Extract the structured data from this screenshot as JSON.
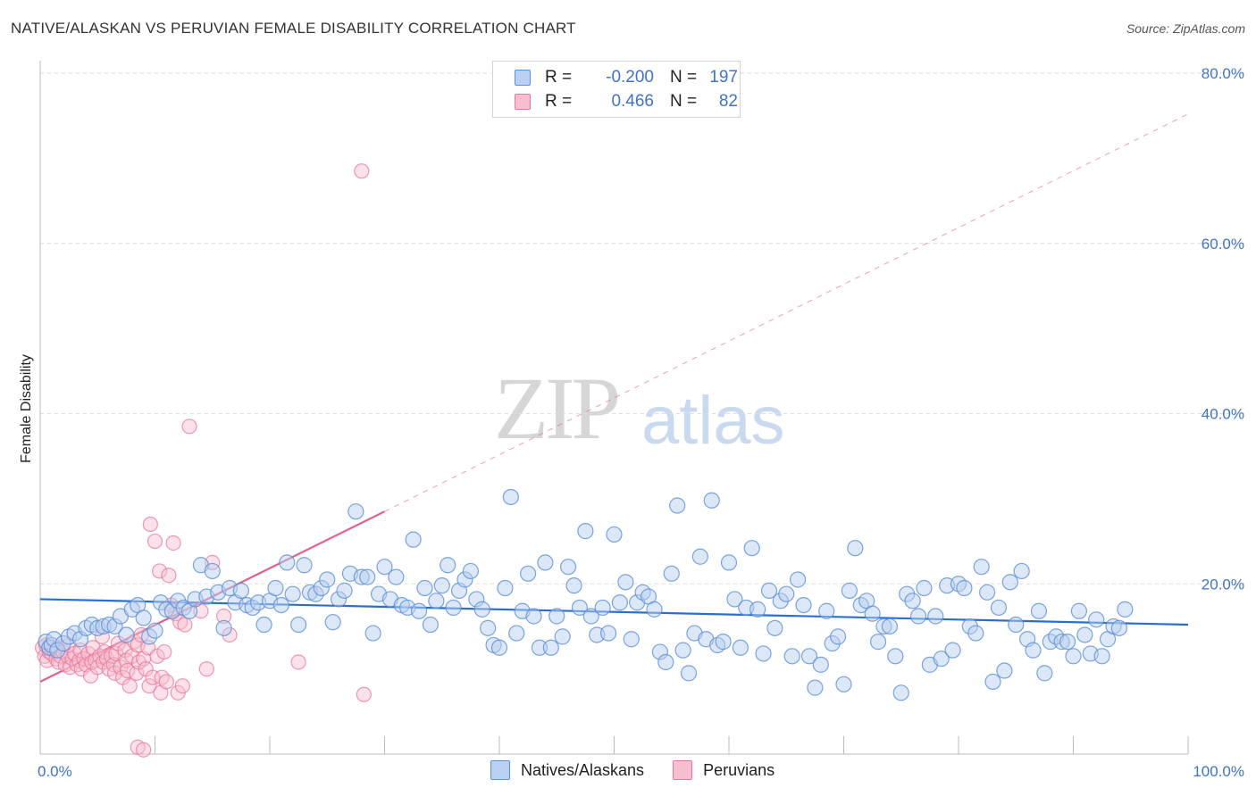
{
  "title": "NATIVE/ALASKAN VS PERUVIAN FEMALE DISABILITY CORRELATION CHART",
  "source": "Source: ZipAtlas.com",
  "watermark": {
    "zip": "ZIP",
    "atlas": "atlas"
  },
  "colors": {
    "blue": "#5b8fd6",
    "blue_fill": "#b9d0f0",
    "blue_line": "#2a6fd0",
    "pink": "#e8779a",
    "pink_fill": "#f6bfd0",
    "pink_line": "#e0608a",
    "axis_text": "#3f73c8",
    "grid": "#dddddd"
  },
  "legend": {
    "rows": [
      {
        "r_label": "R =",
        "r_value": "-0.200",
        "n_label": "N =",
        "n_value": "197"
      },
      {
        "r_label": "R =",
        "r_value": "0.466",
        "n_label": "N =",
        "n_value": "82"
      }
    ]
  },
  "bottom_legend": {
    "natives": "Natives/Alaskans",
    "peruvians": "Peruvians"
  },
  "chart_data": {
    "type": "scatter",
    "title": "NATIVE/ALASKAN VS PERUVIAN FEMALE DISABILITY CORRELATION CHART",
    "xlabel": "",
    "ylabel": "Female Disability",
    "xlim": [
      0,
      100
    ],
    "ylim": [
      0,
      80
    ],
    "x_tick_labels": [
      "0.0%",
      "100.0%"
    ],
    "y_ticks": [
      20,
      40,
      60,
      80
    ],
    "y_tick_labels": [
      "20.0%",
      "40.0%",
      "60.0%",
      "80.0%"
    ],
    "grid": true,
    "series": [
      {
        "name": "Natives/Alaskans",
        "R": -0.2,
        "N": 197,
        "trend": {
          "x": [
            0,
            100
          ],
          "y": [
            18.2,
            15.2
          ],
          "style": "solid"
        },
        "points": [
          [
            0.5,
            13.2
          ],
          [
            0.8,
            12.5
          ],
          [
            1.0,
            12.8
          ],
          [
            1.2,
            13.5
          ],
          [
            1.5,
            12.2
          ],
          [
            2.0,
            13.0
          ],
          [
            2.5,
            13.8
          ],
          [
            3.0,
            14.2
          ],
          [
            3.5,
            13.5
          ],
          [
            4.0,
            14.8
          ],
          [
            4.5,
            15.2
          ],
          [
            5.0,
            14.8
          ],
          [
            5.5,
            15.0
          ],
          [
            6.0,
            15.2
          ],
          [
            6.5,
            15.0
          ],
          [
            7.0,
            16.2
          ],
          [
            7.5,
            14.0
          ],
          [
            8.0,
            17.0
          ],
          [
            8.5,
            17.5
          ],
          [
            9.0,
            16.0
          ],
          [
            9.5,
            13.8
          ],
          [
            10.0,
            14.5
          ],
          [
            10.5,
            17.8
          ],
          [
            11.0,
            17.0
          ],
          [
            11.5,
            16.8
          ],
          [
            12.0,
            18.0
          ],
          [
            12.5,
            17.2
          ],
          [
            13.0,
            16.8
          ],
          [
            13.5,
            18.2
          ],
          [
            14.0,
            22.2
          ],
          [
            14.5,
            18.5
          ],
          [
            15.0,
            21.5
          ],
          [
            15.5,
            19.0
          ],
          [
            16.0,
            14.8
          ],
          [
            16.5,
            19.5
          ],
          [
            17.0,
            17.8
          ],
          [
            17.5,
            19.2
          ],
          [
            18.0,
            17.5
          ],
          [
            18.5,
            17.2
          ],
          [
            19.0,
            17.8
          ],
          [
            19.5,
            15.2
          ],
          [
            20.0,
            18.0
          ],
          [
            20.5,
            19.5
          ],
          [
            21.0,
            17.5
          ],
          [
            21.5,
            22.5
          ],
          [
            22.0,
            18.8
          ],
          [
            22.5,
            15.2
          ],
          [
            23.0,
            22.2
          ],
          [
            23.5,
            19.0
          ],
          [
            24.0,
            18.8
          ],
          [
            24.5,
            19.5
          ],
          [
            25.0,
            20.5
          ],
          [
            25.5,
            15.5
          ],
          [
            26.0,
            18.2
          ],
          [
            26.5,
            19.2
          ],
          [
            27.0,
            21.2
          ],
          [
            27.5,
            28.5
          ],
          [
            28.0,
            20.8
          ],
          [
            28.5,
            20.8
          ],
          [
            29.0,
            14.2
          ],
          [
            29.5,
            18.8
          ],
          [
            30.0,
            22.0
          ],
          [
            30.5,
            18.2
          ],
          [
            31.0,
            20.8
          ],
          [
            31.5,
            17.5
          ],
          [
            32.0,
            17.2
          ],
          [
            32.5,
            25.2
          ],
          [
            33.0,
            16.8
          ],
          [
            33.5,
            19.5
          ],
          [
            34.0,
            15.2
          ],
          [
            34.5,
            18.0
          ],
          [
            35.0,
            19.8
          ],
          [
            35.5,
            22.2
          ],
          [
            36.0,
            17.2
          ],
          [
            36.5,
            19.2
          ],
          [
            37.0,
            20.5
          ],
          [
            37.5,
            21.5
          ],
          [
            38.0,
            18.2
          ],
          [
            38.5,
            17.0
          ],
          [
            39.0,
            14.8
          ],
          [
            39.5,
            12.8
          ],
          [
            40.0,
            12.5
          ],
          [
            40.5,
            19.5
          ],
          [
            41.0,
            30.2
          ],
          [
            41.5,
            14.2
          ],
          [
            42.0,
            16.8
          ],
          [
            42.5,
            21.2
          ],
          [
            43.0,
            16.2
          ],
          [
            43.5,
            12.5
          ],
          [
            44.0,
            22.5
          ],
          [
            44.5,
            12.5
          ],
          [
            45.0,
            16.2
          ],
          [
            45.5,
            13.8
          ],
          [
            46.0,
            22.0
          ],
          [
            46.5,
            19.8
          ],
          [
            47.0,
            17.2
          ],
          [
            47.5,
            26.2
          ],
          [
            48.0,
            16.2
          ],
          [
            48.5,
            14.0
          ],
          [
            49.0,
            17.2
          ],
          [
            49.5,
            14.2
          ],
          [
            50.0,
            25.8
          ],
          [
            50.5,
            17.8
          ],
          [
            51.0,
            20.2
          ],
          [
            51.5,
            13.5
          ],
          [
            52.0,
            17.8
          ],
          [
            52.5,
            19.0
          ],
          [
            53.0,
            18.5
          ],
          [
            53.5,
            17.0
          ],
          [
            54.0,
            12.0
          ],
          [
            54.5,
            10.8
          ],
          [
            55.0,
            21.2
          ],
          [
            55.5,
            29.2
          ],
          [
            56.0,
            12.2
          ],
          [
            56.5,
            9.5
          ],
          [
            57.0,
            14.2
          ],
          [
            57.5,
            23.2
          ],
          [
            58.0,
            13.5
          ],
          [
            58.5,
            29.8
          ],
          [
            59.0,
            12.8
          ],
          [
            59.5,
            13.2
          ],
          [
            60.0,
            22.5
          ],
          [
            60.5,
            18.2
          ],
          [
            61.0,
            12.5
          ],
          [
            61.5,
            17.2
          ],
          [
            62.0,
            24.2
          ],
          [
            62.5,
            17.0
          ],
          [
            63.0,
            11.8
          ],
          [
            63.5,
            19.2
          ],
          [
            64.0,
            14.8
          ],
          [
            64.5,
            18.0
          ],
          [
            65.0,
            18.8
          ],
          [
            65.5,
            11.5
          ],
          [
            66.0,
            20.5
          ],
          [
            66.5,
            17.5
          ],
          [
            67.0,
            11.5
          ],
          [
            67.5,
            7.8
          ],
          [
            68.0,
            10.5
          ],
          [
            68.5,
            16.8
          ],
          [
            69.0,
            13.0
          ],
          [
            69.5,
            13.8
          ],
          [
            70.0,
            8.2
          ],
          [
            70.5,
            19.2
          ],
          [
            71.0,
            24.2
          ],
          [
            71.5,
            17.5
          ],
          [
            72.0,
            18.0
          ],
          [
            72.5,
            16.5
          ],
          [
            73.0,
            13.2
          ],
          [
            73.5,
            15.0
          ],
          [
            74.0,
            15.0
          ],
          [
            74.5,
            11.5
          ],
          [
            75.0,
            7.2
          ],
          [
            75.5,
            18.8
          ],
          [
            76.0,
            18.0
          ],
          [
            76.5,
            16.2
          ],
          [
            77.0,
            19.5
          ],
          [
            77.5,
            10.5
          ],
          [
            78.0,
            16.2
          ],
          [
            78.5,
            11.2
          ],
          [
            79.0,
            19.8
          ],
          [
            79.5,
            12.2
          ],
          [
            80.0,
            20.0
          ],
          [
            80.5,
            19.5
          ],
          [
            81.0,
            15.0
          ],
          [
            81.5,
            14.2
          ],
          [
            82.0,
            22.0
          ],
          [
            82.5,
            19.0
          ],
          [
            83.0,
            8.5
          ],
          [
            83.5,
            17.2
          ],
          [
            84.0,
            9.8
          ],
          [
            84.5,
            20.2
          ],
          [
            85.0,
            15.2
          ],
          [
            85.5,
            21.5
          ],
          [
            86.0,
            13.5
          ],
          [
            86.5,
            12.2
          ],
          [
            87.0,
            16.8
          ],
          [
            87.5,
            9.5
          ],
          [
            88.0,
            13.2
          ],
          [
            88.5,
            13.8
          ],
          [
            89.0,
            13.2
          ],
          [
            89.5,
            13.2
          ],
          [
            90.0,
            11.5
          ],
          [
            90.5,
            16.8
          ],
          [
            91.0,
            14.0
          ],
          [
            91.5,
            11.8
          ],
          [
            92.0,
            15.8
          ],
          [
            92.5,
            11.5
          ],
          [
            93.0,
            13.5
          ],
          [
            93.5,
            15.0
          ],
          [
            94.0,
            14.8
          ],
          [
            94.5,
            17.0
          ]
        ]
      },
      {
        "name": "Peruvians",
        "R": 0.466,
        "N": 82,
        "trend": {
          "x": [
            0,
            30
          ],
          "y": [
            8.5,
            28.5
          ],
          "style": "solid",
          "extension": {
            "x": [
              30,
              100
            ],
            "y": [
              28.5,
              75.2
            ],
            "style": "dashed"
          }
        },
        "points": [
          [
            0.2,
            12.5
          ],
          [
            0.4,
            11.5
          ],
          [
            0.5,
            12.8
          ],
          [
            0.6,
            11.0
          ],
          [
            0.8,
            12.0
          ],
          [
            1.0,
            11.8
          ],
          [
            1.2,
            12.2
          ],
          [
            1.4,
            11.2
          ],
          [
            1.5,
            12.5
          ],
          [
            1.6,
            10.8
          ],
          [
            1.8,
            11.5
          ],
          [
            2.0,
            12.0
          ],
          [
            2.2,
            10.5
          ],
          [
            2.4,
            11.5
          ],
          [
            2.5,
            12.8
          ],
          [
            2.6,
            10.2
          ],
          [
            2.8,
            11.2
          ],
          [
            3.0,
            11.8
          ],
          [
            3.2,
            10.5
          ],
          [
            3.4,
            11.0
          ],
          [
            3.5,
            12.2
          ],
          [
            3.6,
            10.0
          ],
          [
            3.8,
            11.2
          ],
          [
            4.0,
            10.5
          ],
          [
            4.2,
            11.8
          ],
          [
            4.4,
            9.2
          ],
          [
            4.5,
            10.8
          ],
          [
            4.6,
            12.5
          ],
          [
            4.8,
            11.0
          ],
          [
            5.0,
            10.2
          ],
          [
            5.2,
            11.5
          ],
          [
            5.4,
            13.8
          ],
          [
            5.5,
            10.8
          ],
          [
            5.6,
            12.0
          ],
          [
            5.8,
            11.2
          ],
          [
            6.0,
            10.0
          ],
          [
            6.2,
            11.5
          ],
          [
            6.4,
            10.5
          ],
          [
            6.5,
            9.5
          ],
          [
            6.6,
            11.8
          ],
          [
            6.8,
            13.0
          ],
          [
            7.0,
            10.2
          ],
          [
            7.2,
            9.0
          ],
          [
            7.4,
            12.2
          ],
          [
            7.5,
            11.0
          ],
          [
            7.6,
            9.8
          ],
          [
            7.8,
            8.0
          ],
          [
            8.0,
            11.5
          ],
          [
            8.2,
            13.2
          ],
          [
            8.4,
            9.5
          ],
          [
            8.5,
            12.8
          ],
          [
            8.6,
            10.8
          ],
          [
            8.8,
            14.0
          ],
          [
            9.0,
            11.2
          ],
          [
            9.2,
            10.0
          ],
          [
            9.4,
            12.5
          ],
          [
            9.5,
            8.0
          ],
          [
            9.6,
            27.0
          ],
          [
            9.8,
            9.0
          ],
          [
            10.0,
            25.0
          ],
          [
            10.2,
            11.5
          ],
          [
            10.4,
            21.5
          ],
          [
            10.5,
            7.2
          ],
          [
            10.6,
            9.0
          ],
          [
            10.8,
            12.0
          ],
          [
            11.0,
            8.5
          ],
          [
            11.2,
            21.0
          ],
          [
            11.4,
            17.5
          ],
          [
            11.6,
            24.8
          ],
          [
            11.8,
            16.5
          ],
          [
            12.0,
            7.2
          ],
          [
            12.2,
            15.5
          ],
          [
            12.4,
            8.0
          ],
          [
            12.6,
            15.2
          ],
          [
            13.0,
            38.5
          ],
          [
            14.0,
            16.8
          ],
          [
            14.5,
            10.0
          ],
          [
            15.0,
            22.5
          ],
          [
            16.0,
            16.2
          ],
          [
            22.5,
            10.8
          ],
          [
            28.0,
            68.5
          ],
          [
            28.2,
            7.0
          ],
          [
            8.5,
            0.8
          ],
          [
            9.0,
            0.5
          ],
          [
            16.5,
            14.0
          ]
        ]
      }
    ]
  }
}
